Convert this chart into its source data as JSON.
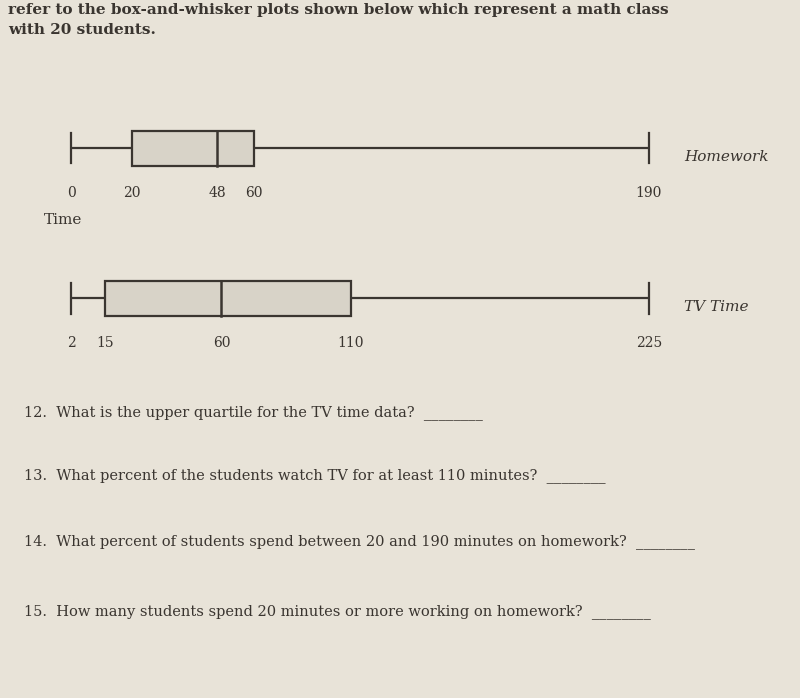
{
  "background_color": "#e8e3d8",
  "hw_plot": {
    "min": 0,
    "q1": 20,
    "median": 48,
    "q3": 60,
    "max": 190,
    "tick_labels": [
      "0",
      "20",
      "48",
      "60",
      "190"
    ],
    "tick_values": [
      0,
      20,
      48,
      60,
      190
    ],
    "side_label": "Homework"
  },
  "tv_plot": {
    "min": 2,
    "q1": 15,
    "median": 60,
    "q3": 110,
    "max": 225,
    "tick_labels": [
      "2",
      "15",
      "60",
      "110",
      "225"
    ],
    "tick_values": [
      2,
      15,
      60,
      110,
      225
    ],
    "side_label": "TV Time"
  },
  "questions": [
    [
      "12.",
      "What is the upper quartile for the TV time data?",
      "________"
    ],
    [
      "13.",
      "What percent of the students watch TV for at least 110 minutes?",
      "________"
    ],
    [
      "14.",
      "What percent of students spend between 20 and 190 minutes on homework?",
      "________"
    ],
    [
      "15.",
      "How many students spend 20 minutes or more working on homework?",
      "________"
    ]
  ],
  "box_facecolor": "#d8d3c8",
  "box_edgecolor": "#3a3530",
  "whisker_color": "#3a3530",
  "text_color": "#3a3530",
  "header_line1": "refer to the box-and-whisker plots shown below which represent a math class",
  "header_line2": "with 20 students.",
  "header_bold": true,
  "time_label": "Time"
}
